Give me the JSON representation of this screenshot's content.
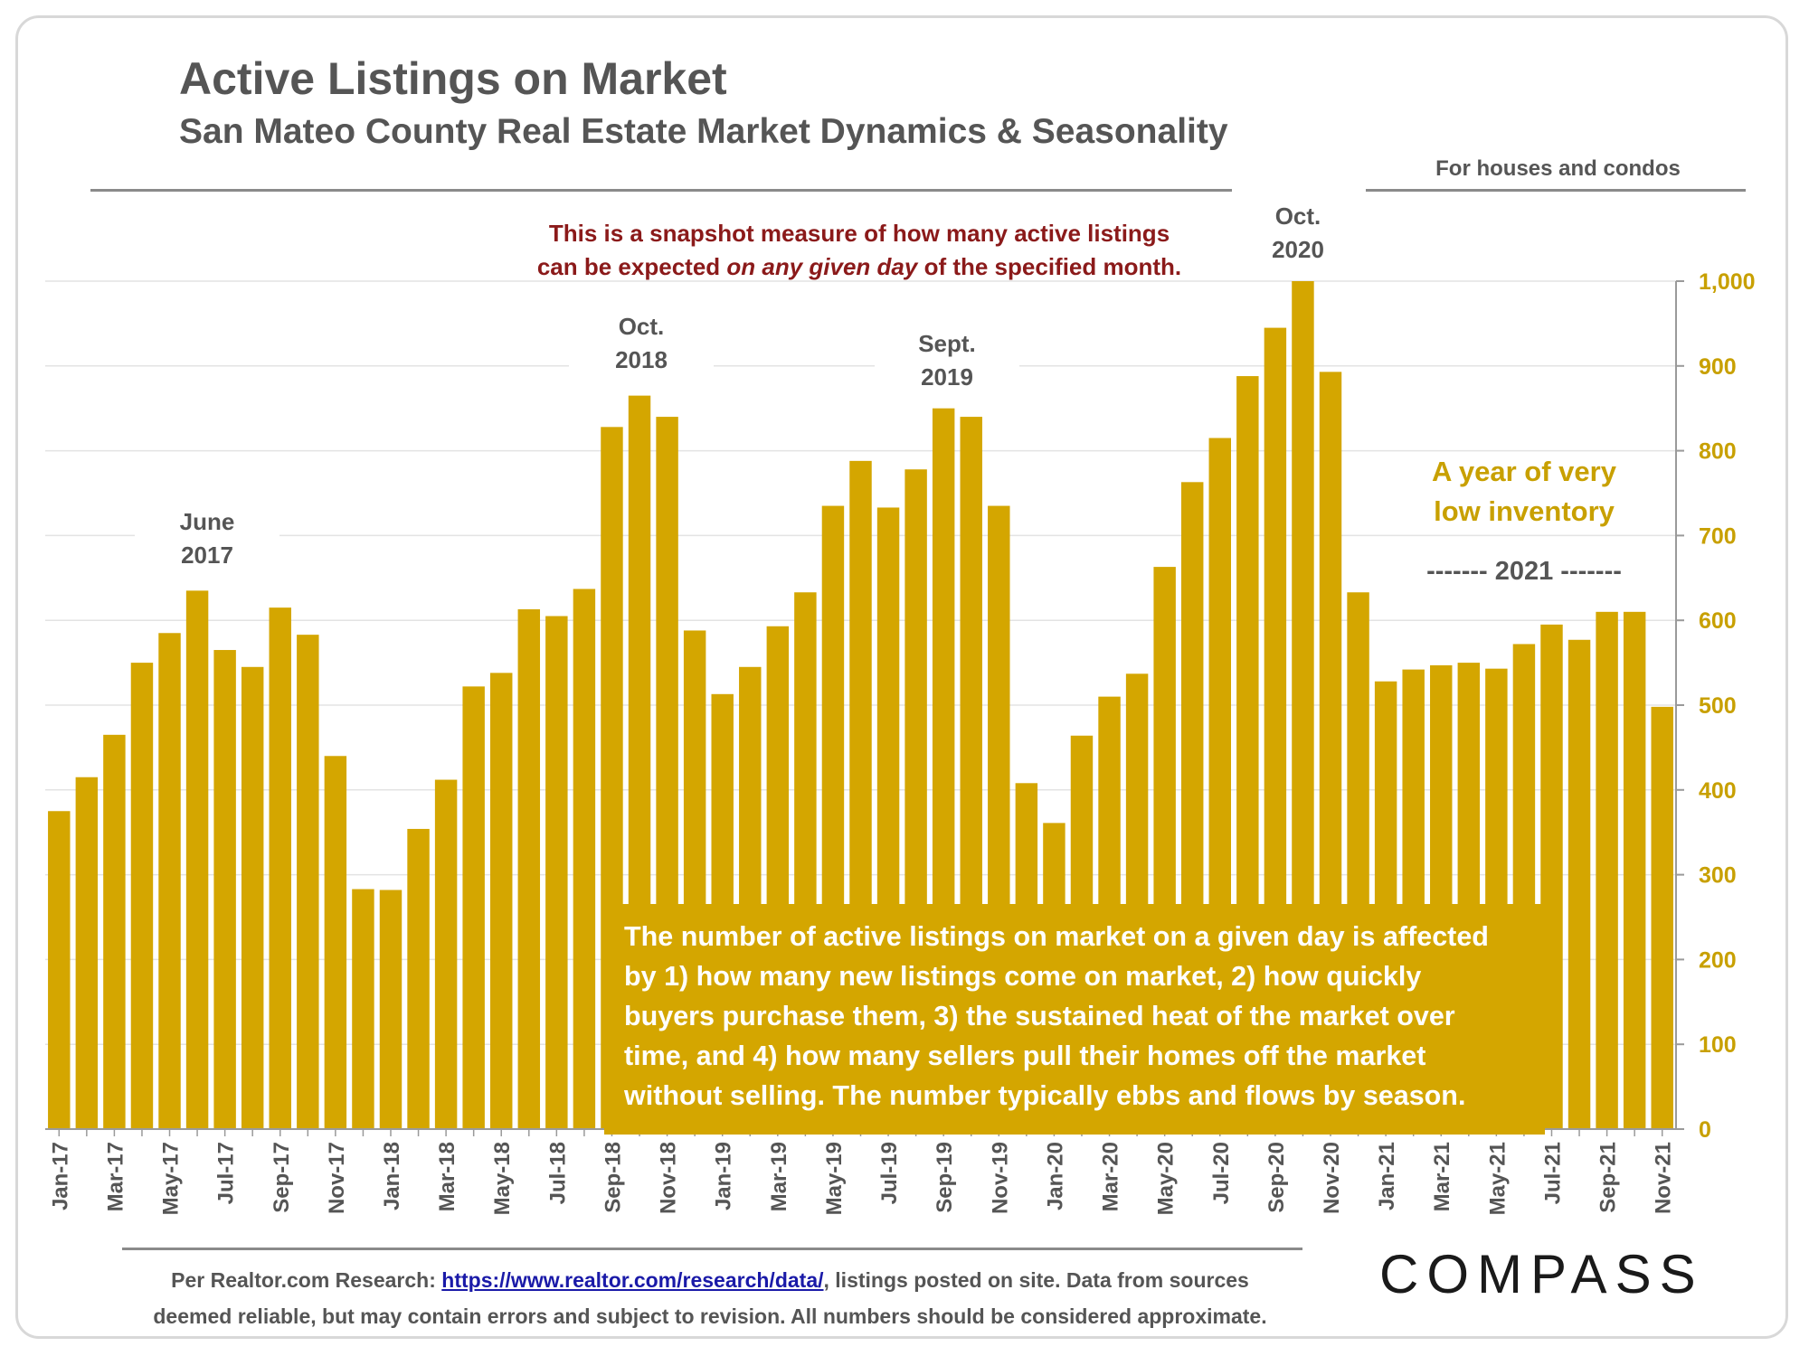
{
  "header": {
    "title": "Active Listings on Market",
    "subtitle": "San Mateo County Real Estate Market Dynamics & Seasonality",
    "scope": "For houses and condos"
  },
  "note": {
    "line1": "This is a snapshot measure of how many active listings",
    "line2_a": "can be expected ",
    "line2_em": "on any given day",
    "line2_b": " of the specified month."
  },
  "peaks": [
    {
      "line1": "June",
      "line2": "2017"
    },
    {
      "line1": "Oct.",
      "line2": "2018"
    },
    {
      "line1": "Sept.",
      "line2": "2019"
    },
    {
      "line1": "Oct.",
      "line2": "2020"
    }
  ],
  "low_inventory": {
    "line1": "A year of very",
    "line2": "low inventory"
  },
  "year_label": "-------   2021   -------",
  "infobox": {
    "lines": [
      "The number of active listings on market on a given day is affected",
      "by 1) how many new listings come on market, 2) how quickly",
      "buyers purchase them, 3) the sustained heat of the market over",
      "time, and 4) how many sellers pull their homes off the market",
      "without selling. The number typically ebbs and flows by season."
    ]
  },
  "footer": {
    "prefix": "Per Realtor.com Research:  ",
    "link": "https://www.realtor.com/research/data/",
    "suffix": ", listings posted on site. Data from sources",
    "line2": "deemed reliable, but may contain errors and subject to revision. All numbers should be considered approximate."
  },
  "logo": "COMPASS",
  "chart_data": {
    "type": "bar",
    "title": "Active Listings on Market",
    "subtitle": "San Mateo County Real Estate Market Dynamics & Seasonality",
    "bar_color": "#d4a600",
    "ylim": [
      0,
      1000
    ],
    "yticks": [
      "0",
      "100",
      "200",
      "300",
      "400",
      "500",
      "600",
      "700",
      "800",
      "900",
      "1,000"
    ],
    "y_axis_position": "right",
    "grid": true,
    "categories": [
      "Jan-17",
      "Feb-17",
      "Mar-17",
      "Apr-17",
      "May-17",
      "Jun-17",
      "Jul-17",
      "Aug-17",
      "Sep-17",
      "Oct-17",
      "Nov-17",
      "Dec-17",
      "Jan-18",
      "Feb-18",
      "Mar-18",
      "Apr-18",
      "May-18",
      "Jun-18",
      "Jul-18",
      "Aug-18",
      "Sep-18",
      "Oct-18",
      "Nov-18",
      "Dec-18",
      "Jan-19",
      "Feb-19",
      "Mar-19",
      "Apr-19",
      "May-19",
      "Jun-19",
      "Jul-19",
      "Aug-19",
      "Sep-19",
      "Oct-19",
      "Nov-19",
      "Dec-19",
      "Jan-20",
      "Feb-20",
      "Mar-20",
      "Apr-20",
      "May-20",
      "Jun-20",
      "Jul-20",
      "Aug-20",
      "Sep-20",
      "Oct-20",
      "Nov-20",
      "Dec-20",
      "Jan-21",
      "Feb-21",
      "Mar-21",
      "Apr-21",
      "May-21",
      "Jun-21",
      "Jul-21",
      "Aug-21",
      "Sep-21",
      "Oct-21",
      "Nov-21"
    ],
    "visible_tick_labels": [
      "Jan-17",
      "Mar-17",
      "May-17",
      "Jul-17",
      "Sep-17",
      "Nov-17",
      "Jan-18",
      "Mar-18",
      "May-18",
      "Jul-18",
      "Sep-18",
      "Nov-18",
      "Jan-19",
      "Mar-19",
      "May-19",
      "Jul-19",
      "Sep-19",
      "Nov-19",
      "Jan-20",
      "Mar-20",
      "May-20",
      "Jul-20",
      "Sep-20",
      "Nov-20",
      "Jan-21",
      "Mar-21",
      "May-21",
      "Jul-21",
      "Sep-21",
      "Nov-21"
    ],
    "values": [
      375,
      415,
      465,
      550,
      585,
      635,
      565,
      545,
      615,
      583,
      440,
      283,
      282,
      354,
      412,
      522,
      538,
      613,
      605,
      637,
      828,
      865,
      840,
      588,
      513,
      545,
      593,
      633,
      735,
      788,
      733,
      778,
      850,
      840,
      735,
      408,
      361,
      464,
      510,
      537,
      663,
      763,
      815,
      888,
      945,
      1000,
      893,
      633,
      528,
      542,
      547,
      550,
      543,
      572,
      595,
      577,
      610,
      610,
      498
    ]
  }
}
